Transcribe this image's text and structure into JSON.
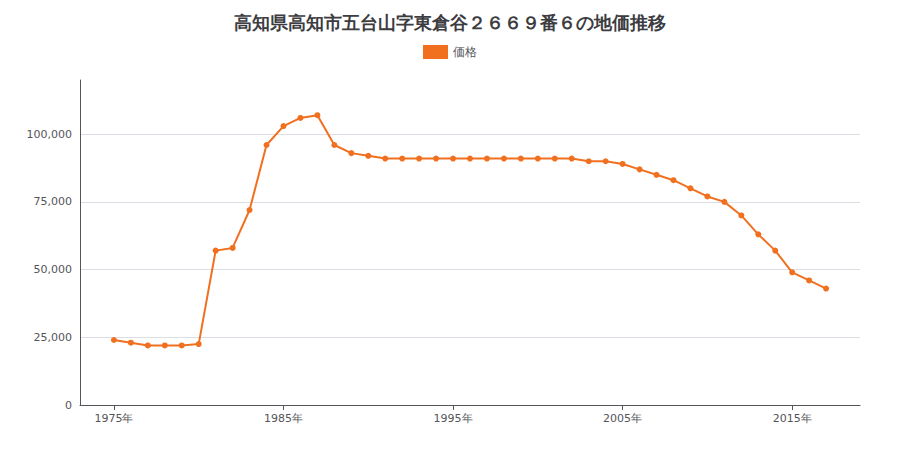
{
  "chart_data": {
    "type": "line",
    "title": "高知県高知市五台山字東倉谷２６６９番６の地価推移",
    "series": [
      {
        "name": "価格",
        "color": "#F07020",
        "marker": "circle",
        "values": [
          24000,
          23000,
          22000,
          22000,
          22000,
          22500,
          57000,
          58000,
          72000,
          96000,
          103000,
          106000,
          107000,
          96000,
          93000,
          92000,
          91000,
          91000,
          91000,
          91000,
          91000,
          91000,
          91000,
          91000,
          91000,
          91000,
          91000,
          91000,
          90000,
          90000,
          89000,
          87000,
          85000,
          83000,
          80000,
          77000,
          75000,
          70000,
          63000,
          57000,
          49000,
          46000,
          43000
        ]
      }
    ],
    "x": [
      1975,
      1976,
      1977,
      1978,
      1979,
      1980,
      1981,
      1982,
      1983,
      1984,
      1985,
      1986,
      1987,
      1988,
      1989,
      1990,
      1991,
      1992,
      1993,
      1994,
      1995,
      1996,
      1997,
      1998,
      1999,
      2000,
      2001,
      2002,
      2003,
      2004,
      2005,
      2006,
      2007,
      2008,
      2009,
      2010,
      2011,
      2012,
      2013,
      2014,
      2015,
      2016,
      2017
    ],
    "xlim": [
      1973,
      2019
    ],
    "xticks": [
      {
        "value": 1975,
        "label": "1975年"
      },
      {
        "value": 1985,
        "label": "1985年"
      },
      {
        "value": 1995,
        "label": "1995年"
      },
      {
        "value": 2005,
        "label": "2005年"
      },
      {
        "value": 2015,
        "label": "2015年"
      }
    ],
    "ylim": [
      0,
      120000
    ],
    "yticks": [
      0,
      {
        "value": 25000,
        "label": "25,000"
      },
      {
        "value": 50000,
        "label": "50,000"
      },
      {
        "value": 75000,
        "label": "75,000"
      },
      {
        "value": 100000,
        "label": "100,000"
      }
    ],
    "grid": true,
    "legend": "top"
  }
}
